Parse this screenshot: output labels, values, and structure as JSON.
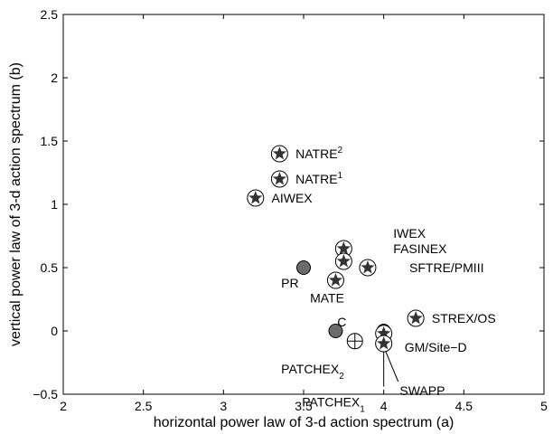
{
  "chart_data": {
    "type": "scatter",
    "xlabel": "horizontal power law of 3-d action spectrum (a)",
    "ylabel": "vertical power law of 3-d action spectrum (b)",
    "xlim": [
      2,
      5
    ],
    "ylim": [
      -0.5,
      2.5
    ],
    "xticks": [
      "2",
      "2.5",
      "3",
      "3.5",
      "4",
      "4.5",
      "5"
    ],
    "yticks": [
      "−0.5",
      "0",
      "0.5",
      "1",
      "1.5",
      "2",
      "2.5"
    ],
    "grid": false,
    "colors": {
      "marker_fill": "#6b6b6b",
      "star": "#333333",
      "outline": "#000000"
    },
    "points": [
      {
        "x": 3.35,
        "y": 1.4,
        "marker": "star"
      },
      {
        "x": 3.35,
        "y": 1.2,
        "marker": "star"
      },
      {
        "x": 3.2,
        "y": 1.05,
        "marker": "star"
      },
      {
        "x": 3.75,
        "y": 0.65,
        "marker": "star"
      },
      {
        "x": 3.75,
        "y": 0.55,
        "marker": "star"
      },
      {
        "x": 3.9,
        "y": 0.5,
        "marker": "star"
      },
      {
        "x": 3.5,
        "y": 0.5,
        "marker": "filled"
      },
      {
        "x": 3.7,
        "y": 0.4,
        "marker": "star"
      },
      {
        "x": 4.2,
        "y": 0.1,
        "marker": "star"
      },
      {
        "x": 3.7,
        "y": 0.0,
        "marker": "filled"
      },
      {
        "x": 4.0,
        "y": 0.0,
        "marker": "filled"
      },
      {
        "x": 4.0,
        "y": -0.02,
        "marker": "star"
      },
      {
        "x": 3.82,
        "y": -0.08,
        "marker": "crosshair"
      },
      {
        "x": 4.0,
        "y": -0.1,
        "marker": "star"
      }
    ],
    "labels": [
      {
        "text": "NATRE",
        "sup": "2",
        "x": 3.45,
        "y": 1.4
      },
      {
        "text": "NATRE",
        "sup": "1",
        "x": 3.45,
        "y": 1.2
      },
      {
        "text": "AIWEX",
        "sup": "",
        "x": 3.3,
        "y": 1.05
      },
      {
        "text": "IWEX",
        "sup": "",
        "x": 4.06,
        "y": 0.77
      },
      {
        "text": "FASINEX",
        "sup": "",
        "x": 4.06,
        "y": 0.65
      },
      {
        "text": "SFTRE/PMIII",
        "sup": "",
        "x": 4.16,
        "y": 0.5
      },
      {
        "text": "PR",
        "sup": "",
        "x": 3.36,
        "y": 0.38
      },
      {
        "text": "MATE",
        "sup": "",
        "x": 3.54,
        "y": 0.26
      },
      {
        "text": "STREX/OS",
        "sup": "",
        "x": 4.3,
        "y": 0.1
      },
      {
        "text": "C",
        "sup": "",
        "x": 3.71,
        "y": 0.07
      },
      {
        "text": "GM/Site−D",
        "sup": "",
        "x": 4.13,
        "y": -0.13
      },
      {
        "text": "PATCHEX",
        "sup": "2",
        "x": 3.36,
        "y": -0.3
      },
      {
        "text": "SWAPP",
        "sup": "",
        "x": 4.1,
        "y": -0.47
      },
      {
        "text": "PATCHEX",
        "sup": "1",
        "x": 3.49,
        "y": -0.56
      }
    ]
  }
}
